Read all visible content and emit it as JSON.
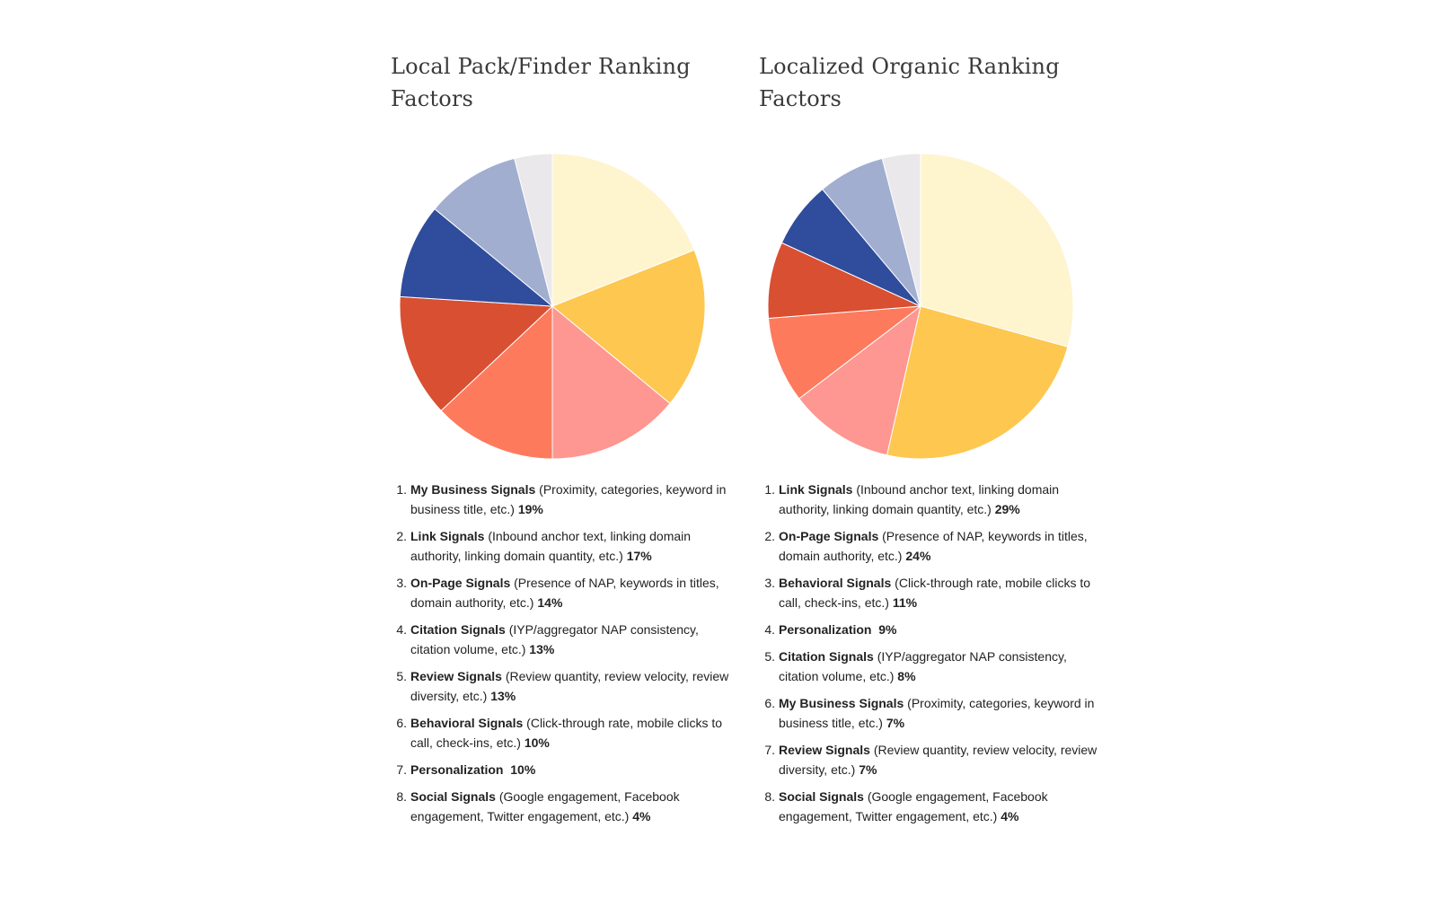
{
  "chart_data": [
    {
      "type": "pie",
      "title": "Local Pack/Finder Ranking Factors",
      "colors": [
        "#FEF4CE",
        "#FDC750",
        "#FE9691",
        "#FE7A5D",
        "#D94F31",
        "#2F4D9C",
        "#A1AED0",
        "#EAE8EB"
      ],
      "slices": [
        {
          "rank": "1.",
          "name": "My Business Signals",
          "desc": "(Proximity, categories, keyword in business title, etc.)",
          "value_label": "19%",
          "value": 19
        },
        {
          "rank": "2.",
          "name": "Link Signals",
          "desc": "(Inbound anchor text, linking domain authority, linking domain quantity, etc.)",
          "value_label": "17%",
          "value": 17
        },
        {
          "rank": "3.",
          "name": "On-Page Signals",
          "desc": "(Presence of NAP, keywords in titles, domain authority, etc.)",
          "value_label": "14%",
          "value": 14
        },
        {
          "rank": "4.",
          "name": "Citation Signals",
          "desc": "(IYP/aggregator NAP consistency, citation volume, etc.)",
          "value_label": "13%",
          "value": 13
        },
        {
          "rank": "5.",
          "name": "Review Signals",
          "desc": "(Review quantity, review velocity, review diversity, etc.)",
          "value_label": "13%",
          "value": 13
        },
        {
          "rank": "6.",
          "name": "Behavioral Signals",
          "desc": "(Click-through rate, mobile clicks to call, check-ins, etc.)",
          "value_label": "10%",
          "value": 10
        },
        {
          "rank": "7.",
          "name": "Personalization",
          "desc": "",
          "value_label": "10%",
          "value": 10
        },
        {
          "rank": "8.",
          "name": "Social Signals",
          "desc": "(Google engagement, Facebook engagement, Twitter engagement, etc.)",
          "value_label": "4%",
          "value": 4
        }
      ]
    },
    {
      "type": "pie",
      "title": "Localized Organic Ranking Factors",
      "colors": [
        "#FEF4CE",
        "#FDC750",
        "#FE9691",
        "#FE7A5D",
        "#D94F31",
        "#2F4D9C",
        "#A1AED0",
        "#EAE8EB"
      ],
      "slices": [
        {
          "rank": "1.",
          "name": "Link Signals",
          "desc": "(Inbound anchor text, linking domain authority, linking domain quantity, etc.)",
          "value_label": "29%",
          "value": 29
        },
        {
          "rank": "2.",
          "name": "On-Page Signals",
          "desc": "(Presence of NAP, keywords in titles, domain authority, etc.)",
          "value_label": "24%",
          "value": 24
        },
        {
          "rank": "3.",
          "name": "Behavioral Signals",
          "desc": "(Click-through rate, mobile clicks to call, check-ins, etc.)",
          "value_label": "11%",
          "value": 11
        },
        {
          "rank": "4.",
          "name": "Personalization",
          "desc": "",
          "value_label": "9%",
          "value": 9
        },
        {
          "rank": "5.",
          "name": "Citation Signals",
          "desc": "(IYP/aggregator NAP consistency, citation volume, etc.)",
          "value_label": "8%",
          "value": 8
        },
        {
          "rank": "6.",
          "name": "My Business Signals",
          "desc": "(Proximity, categories, keyword in business title, etc.)",
          "value_label": "7%",
          "value": 7
        },
        {
          "rank": "7.",
          "name": "Review Signals",
          "desc": "(Review quantity, review velocity, review diversity, etc.)",
          "value_label": "7%",
          "value": 7
        },
        {
          "rank": "8.",
          "name": "Social Signals",
          "desc": "(Google engagement, Facebook engagement, Twitter engagement, etc.)",
          "value_label": "4%",
          "value": 4
        }
      ]
    }
  ]
}
